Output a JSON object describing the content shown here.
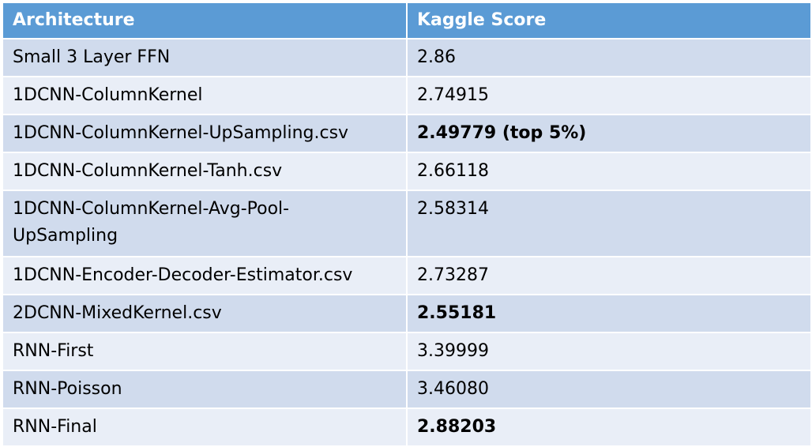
{
  "table": {
    "headers": [
      "Architecture",
      "Kaggle Score"
    ],
    "rows": [
      {
        "architecture": "Small 3 Layer FFN",
        "score": "2.86",
        "bold": false
      },
      {
        "architecture": "1DCNN-ColumnKernel",
        "score": "2.74915",
        "bold": false
      },
      {
        "architecture": "1DCNN-ColumnKernel-UpSampling.csv",
        "score": "2.49779 (top 5%)",
        "bold": true
      },
      {
        "architecture": "1DCNN-ColumnKernel-Tanh.csv",
        "score": "2.66118",
        "bold": false
      },
      {
        "architecture": "1DCNN-ColumnKernel-Avg-Pool-UpSampling",
        "score": "2.58314",
        "bold": false
      },
      {
        "architecture": "1DCNN-Encoder-Decoder-Estimator.csv",
        "score": "2.73287",
        "bold": false
      },
      {
        "architecture": "2DCNN-MixedKernel.csv",
        "score": "2.55181",
        "bold": true
      },
      {
        "architecture": "RNN-First",
        "score": "3.39999",
        "bold": false
      },
      {
        "architecture": "RNN-Poisson",
        "score": "3.46080",
        "bold": false
      },
      {
        "architecture": "RNN-Final",
        "score": "2.88203",
        "bold": true
      }
    ]
  },
  "colors": {
    "header_bg": "#5b9bd5",
    "header_text": "#ffffff",
    "row_band_dark": "#d0dbed",
    "row_band_light": "#e9eef7",
    "border": "#ffffff"
  }
}
